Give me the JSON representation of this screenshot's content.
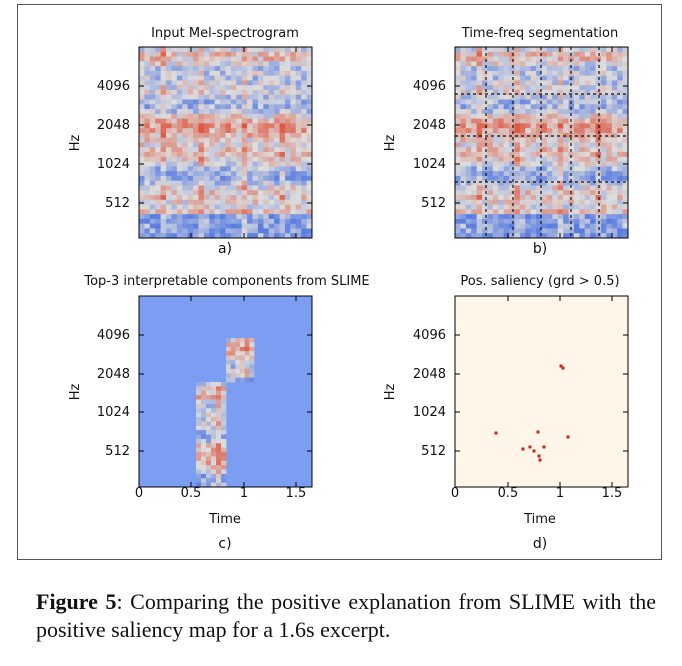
{
  "panels": [
    {
      "id": "a",
      "title": "Input Mel-spectrogram",
      "sublabel": "a)",
      "ylabel": "Hz",
      "yticks": [
        "4096",
        "2048",
        "1024",
        "512"
      ],
      "xlabel": "",
      "xticks": [],
      "kind": "spectrogram"
    },
    {
      "id": "b",
      "title": "Time-freq segmentation",
      "sublabel": "b)",
      "ylabel": "Hz",
      "yticks": [
        "4096",
        "2048",
        "1024",
        "512"
      ],
      "xlabel": "",
      "xticks": [],
      "kind": "segmented"
    },
    {
      "id": "c",
      "title": "Top-3 interpretable components from SLIME",
      "sublabel": "c)",
      "ylabel": "Hz",
      "yticks": [
        "4096",
        "2048",
        "1024",
        "512"
      ],
      "xlabel": "Time",
      "xticks": [
        "0",
        "0.5",
        "1",
        "1.5"
      ],
      "kind": "components"
    },
    {
      "id": "d",
      "title": "Pos. saliency (grd > 0.5)",
      "sublabel": "d)",
      "ylabel": "Hz",
      "yticks": [
        "4096",
        "2048",
        "1024",
        "512"
      ],
      "xlabel": "Time",
      "xticks": [
        "0",
        "0.5",
        "1",
        "1.5"
      ],
      "kind": "saliency"
    }
  ],
  "colors": {
    "warm": "#e8785e",
    "cool": "#7f9ff0",
    "neutral": "#dcdcdc",
    "background_blue": "#7b9ef2",
    "saliency_bg": "#fff5e9",
    "saliency_mark": "#c0281f"
  },
  "caption": {
    "label": "Figure 5",
    "text": ":  Comparing the positive explanation from SLIME with the positive saliency map for a 1.6s excerpt."
  }
}
